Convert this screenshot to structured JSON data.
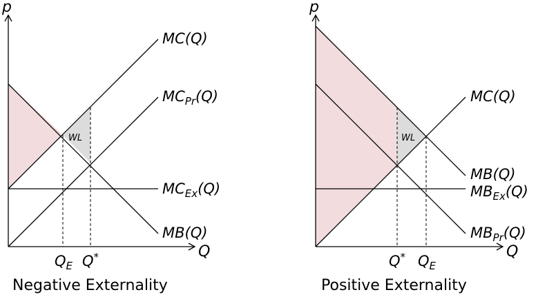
{
  "colors": {
    "surplus_fill": "#f2dcdd",
    "welfare_loss_fill": "#dcdcdc"
  },
  "left_panel": {
    "caption": "Negative Externality",
    "y_axis_label": "p",
    "x_axis_label": "Q",
    "curves": {
      "mc": {
        "base": "MC",
        "sub": "",
        "arg": "(Q)"
      },
      "mc_pr": {
        "base": "MC",
        "sub": "Pr",
        "arg": "(Q)"
      },
      "mc_ex": {
        "base": "MC",
        "sub": "Ex",
        "arg": "(Q)"
      },
      "mb": {
        "base": "MB",
        "sub": "",
        "arg": "(Q)"
      }
    },
    "ticks": {
      "q_e": {
        "base": "Q",
        "sub": "E",
        "sup": ""
      },
      "q_star": {
        "base": "Q",
        "sub": "",
        "sup": "*"
      }
    },
    "region_label": "WL"
  },
  "right_panel": {
    "caption": "Positive Externality",
    "y_axis_label": "p",
    "x_axis_label": "Q",
    "curves": {
      "mc": {
        "base": "MC",
        "sub": "",
        "arg": "(Q)"
      },
      "mb": {
        "base": "MB",
        "sub": "",
        "arg": "(Q)"
      },
      "mb_ex": {
        "base": "MB",
        "sub": "Ex",
        "arg": "(Q)"
      },
      "mb_pr": {
        "base": "MB",
        "sub": "Pr",
        "arg": "(Q)"
      }
    },
    "ticks": {
      "q_star": {
        "base": "Q",
        "sub": "",
        "sup": "*"
      },
      "q_e": {
        "base": "Q",
        "sub": "E",
        "sup": ""
      }
    },
    "region_label": "WL"
  }
}
